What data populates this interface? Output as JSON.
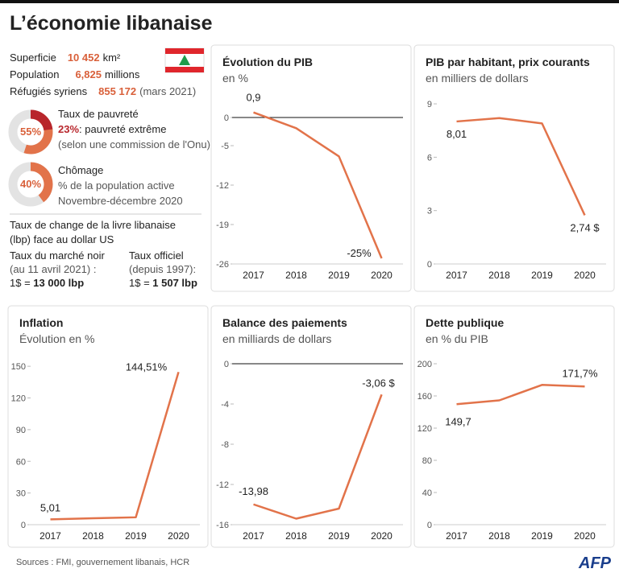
{
  "title": "L’économie libanaise",
  "facts": {
    "area": {
      "label": "Superficie",
      "value": "10 452",
      "unit": "km²"
    },
    "population": {
      "label": "Population",
      "value": "6,825",
      "unit": "millions"
    },
    "refugees": {
      "label": "Réfugiés syriens",
      "value": "855 172",
      "note": "(mars 2021)"
    },
    "poverty": {
      "value": 55,
      "value_label": "55%",
      "label": "Taux de pauvreté",
      "extreme_value": 23,
      "extreme_value_label": "23%",
      "extreme_label": ": pauvreté extrême",
      "note": "(selon une commission de l'Onu)"
    },
    "unemployment": {
      "value": 40,
      "value_label": "40%",
      "label": "Chômage",
      "note": "% de la population active",
      "period": "Novembre-décembre 2020"
    }
  },
  "exchange": {
    "title": "Taux de change de la livre libanaise",
    "title2": "(lbp) face au dollar US",
    "black_market": {
      "label": "Taux du marché noir",
      "date": "(au 11 avril 2021) :",
      "prefix": "1$ = ",
      "rate": "13 000 lbp"
    },
    "official": {
      "label": "Taux officiel",
      "date": "(depuis 1997):",
      "prefix": "1$ = ",
      "rate": "1 507 lbp"
    }
  },
  "chart_data": [
    {
      "type": "line",
      "title": "Évolution du PIB",
      "subtitle": "en %",
      "categories": [
        "2017",
        "2018",
        "2019",
        "2020"
      ],
      "values": [
        0.9,
        -1.9,
        -6.9,
        -25
      ],
      "value_labels": [
        "0,9",
        null,
        null,
        "-25%"
      ],
      "color": "#e2734a",
      "ylim": [
        -26,
        4
      ],
      "yticks": [
        0,
        -5,
        -12,
        -19,
        -26
      ],
      "zero_line": true
    },
    {
      "type": "line",
      "title": "PIB par habitant, prix courants",
      "subtitle": "en milliers de dollars",
      "categories": [
        "2017",
        "2018",
        "2019",
        "2020"
      ],
      "values": [
        8.01,
        8.2,
        7.9,
        2.74
      ],
      "value_labels": [
        "8,01",
        null,
        null,
        "2,74 $"
      ],
      "color": "#e2734a",
      "ylim": [
        0,
        9.5
      ],
      "yticks": [
        0,
        3,
        6,
        9
      ],
      "zero_line": false
    },
    {
      "type": "line",
      "title": "Inflation",
      "subtitle": "Évolution en %",
      "categories": [
        "2017",
        "2018",
        "2019",
        "2020"
      ],
      "values": [
        5.01,
        6.1,
        7,
        144.51
      ],
      "value_labels": [
        "5,01",
        null,
        null,
        "144,51%"
      ],
      "color": "#e2734a",
      "ylim": [
        0,
        160
      ],
      "yticks": [
        0,
        30,
        60,
        90,
        120,
        150
      ],
      "zero_line": false
    },
    {
      "type": "line",
      "title": "Balance des paiements",
      "subtitle": "en milliards de dollars",
      "categories": [
        "2017",
        "2018",
        "2019",
        "2020"
      ],
      "values": [
        -13.98,
        -15.4,
        -14.4,
        -3.06
      ],
      "value_labels": [
        "-13,98",
        null,
        null,
        "-3,06 $"
      ],
      "color": "#e2734a",
      "ylim": [
        -16,
        0.8
      ],
      "yticks": [
        0,
        -4,
        -8,
        -12,
        -16
      ],
      "zero_line": true
    },
    {
      "type": "line",
      "title": "Dette publique",
      "subtitle": "en % du PIB",
      "categories": [
        "2017",
        "2018",
        "2019",
        "2020"
      ],
      "values": [
        149.7,
        154.5,
        173.7,
        171.7
      ],
      "value_labels": [
        "149,7",
        null,
        null,
        "171,7%"
      ],
      "color": "#e2734a",
      "ylim": [
        0,
        210
      ],
      "yticks": [
        0,
        40,
        80,
        120,
        160,
        200
      ],
      "zero_line": false
    }
  ],
  "source": "Sources : FMI, gouvernement libanais, HCR",
  "logo": "AFP"
}
